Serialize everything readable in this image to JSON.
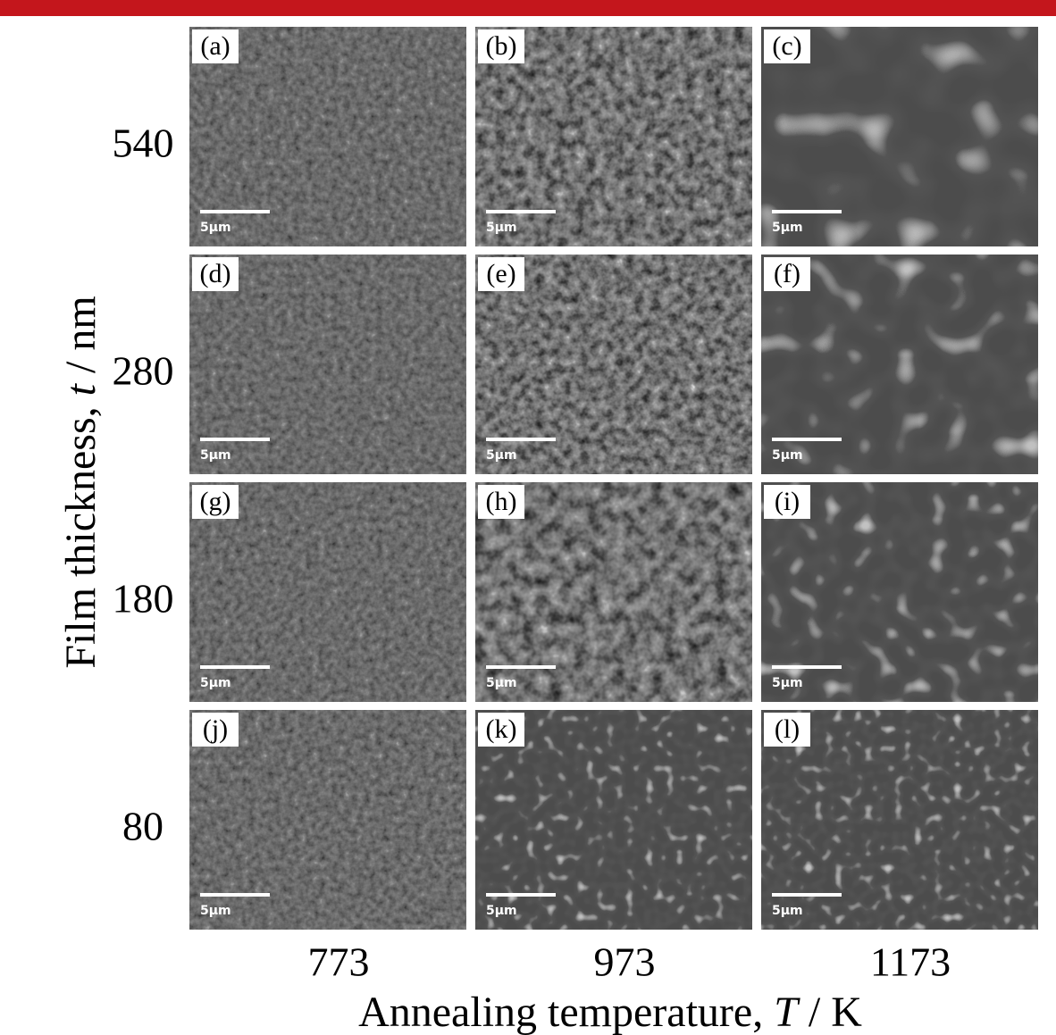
{
  "figure": {
    "y_label": {
      "before": "Film thickness, ",
      "var": "t",
      "after": " / nm"
    },
    "x_label": {
      "before": "Annealing temperature, ",
      "var": "T",
      "after": " / K"
    },
    "rows": [
      540,
      280,
      180,
      80
    ],
    "columns": [
      773,
      973,
      1173
    ],
    "panels": [
      {
        "label": "(a)",
        "scale": "5μm"
      },
      {
        "label": "(b)",
        "scale": "5μm"
      },
      {
        "label": "(c)",
        "scale": "5μm"
      },
      {
        "label": "(d)",
        "scale": "5μm"
      },
      {
        "label": "(e)",
        "scale": "5μm"
      },
      {
        "label": "(f)",
        "scale": "5μm"
      },
      {
        "label": "(g)",
        "scale": "5μm"
      },
      {
        "label": "(h)",
        "scale": "5μm"
      },
      {
        "label": "(i)",
        "scale": "5μm"
      },
      {
        "label": "(j)",
        "scale": "5μm"
      },
      {
        "label": "(k)",
        "scale": "5μm"
      },
      {
        "label": "(l)",
        "scale": "5μm"
      }
    ]
  }
}
